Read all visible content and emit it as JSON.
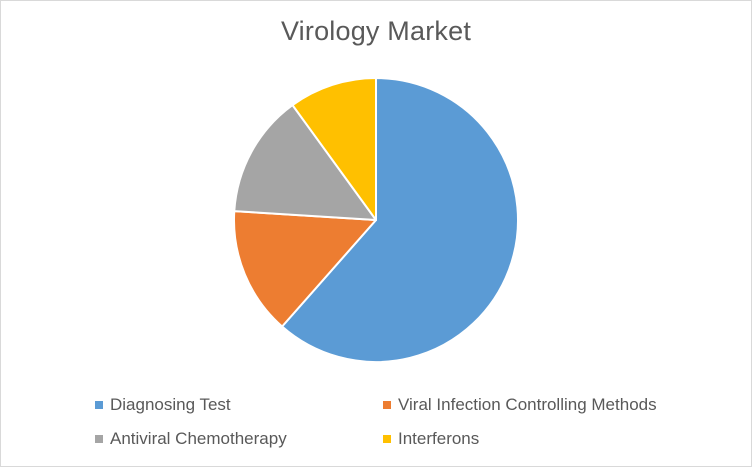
{
  "chart_data": {
    "type": "pie",
    "title": "Virology Market",
    "legend_position": "bottom",
    "categories": [
      "Diagnosing Test",
      "Viral Infection Controlling Methods",
      "Antiviral Chemotherapy",
      "Interferons"
    ],
    "values": [
      61.5,
      14.5,
      14.0,
      10.0
    ],
    "colors": [
      "#5B9BD5",
      "#ED7D31",
      "#A5A5A5",
      "#FFC000"
    ]
  }
}
